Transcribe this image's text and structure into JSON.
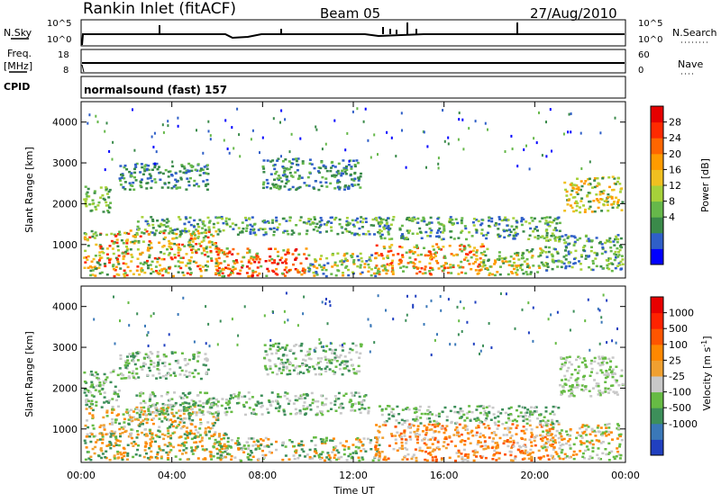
{
  "header": {
    "station": "Rankin Inlet (fitACF)",
    "beam": "Beam 05",
    "date": "27/Aug/2010"
  },
  "strips": {
    "nsky_label": "N.Sky",
    "nsearch_label": "N.Search",
    "freq_label_1": "Freq.",
    "freq_label_2": "[MHz]",
    "nave_label": "Nave",
    "cpid_label": "CPID",
    "cpid_value": "normalsound (fast) 157",
    "nsky_ticks": [
      "10^5",
      "10^0"
    ],
    "nsearch_ticks": [
      "10^5",
      "10^0"
    ],
    "freq_ticks": [
      "18",
      "8"
    ],
    "nave_ticks": [
      "60",
      "0"
    ]
  },
  "chart_data": [
    {
      "type": "heatmap",
      "name": "power",
      "ylabel": "Slant Range [km]",
      "yticks": [
        "1000",
        "2000",
        "3000",
        "4000"
      ],
      "ylim": [
        180,
        4500
      ],
      "xlim": [
        0,
        24
      ],
      "colorbar_label": "Power [dB]",
      "colorbar_ticks": [
        "28",
        "24",
        "20",
        "16",
        "12",
        "8",
        "4"
      ],
      "colorbar_colors": [
        "#0000ff",
        "#2f5fc8",
        "#3a8a4a",
        "#66b84a",
        "#a6d13a",
        "#f0c020",
        "#ff9b00",
        "#ff6600",
        "#ff2a00",
        "#e60000"
      ]
    },
    {
      "type": "heatmap",
      "name": "velocity",
      "ylabel": "Slant Range [km]",
      "yticks": [
        "1000",
        "2000",
        "3000",
        "4000"
      ],
      "ylim": [
        180,
        4500
      ],
      "xlim": [
        0,
        24
      ],
      "colorbar_label": "Velocity [m s",
      "colorbar_label_sup": "-1",
      "colorbar_label_end": "]",
      "colorbar_ticks": [
        "1000",
        "500",
        "100",
        "25",
        "-25",
        "-100",
        "-500",
        "-1000"
      ],
      "colorbar_colors": [
        "#2040c0",
        "#3a78b8",
        "#3d8f5a",
        "#66bb44",
        "#c8c8c8",
        "#f0a030",
        "#ff8800",
        "#ff5500",
        "#ff2200",
        "#e80000"
      ]
    }
  ],
  "xaxis": {
    "ticks": [
      "00:00",
      "04:00",
      "08:00",
      "12:00",
      "16:00",
      "20:00",
      "00:00"
    ],
    "label": "Time UT"
  }
}
